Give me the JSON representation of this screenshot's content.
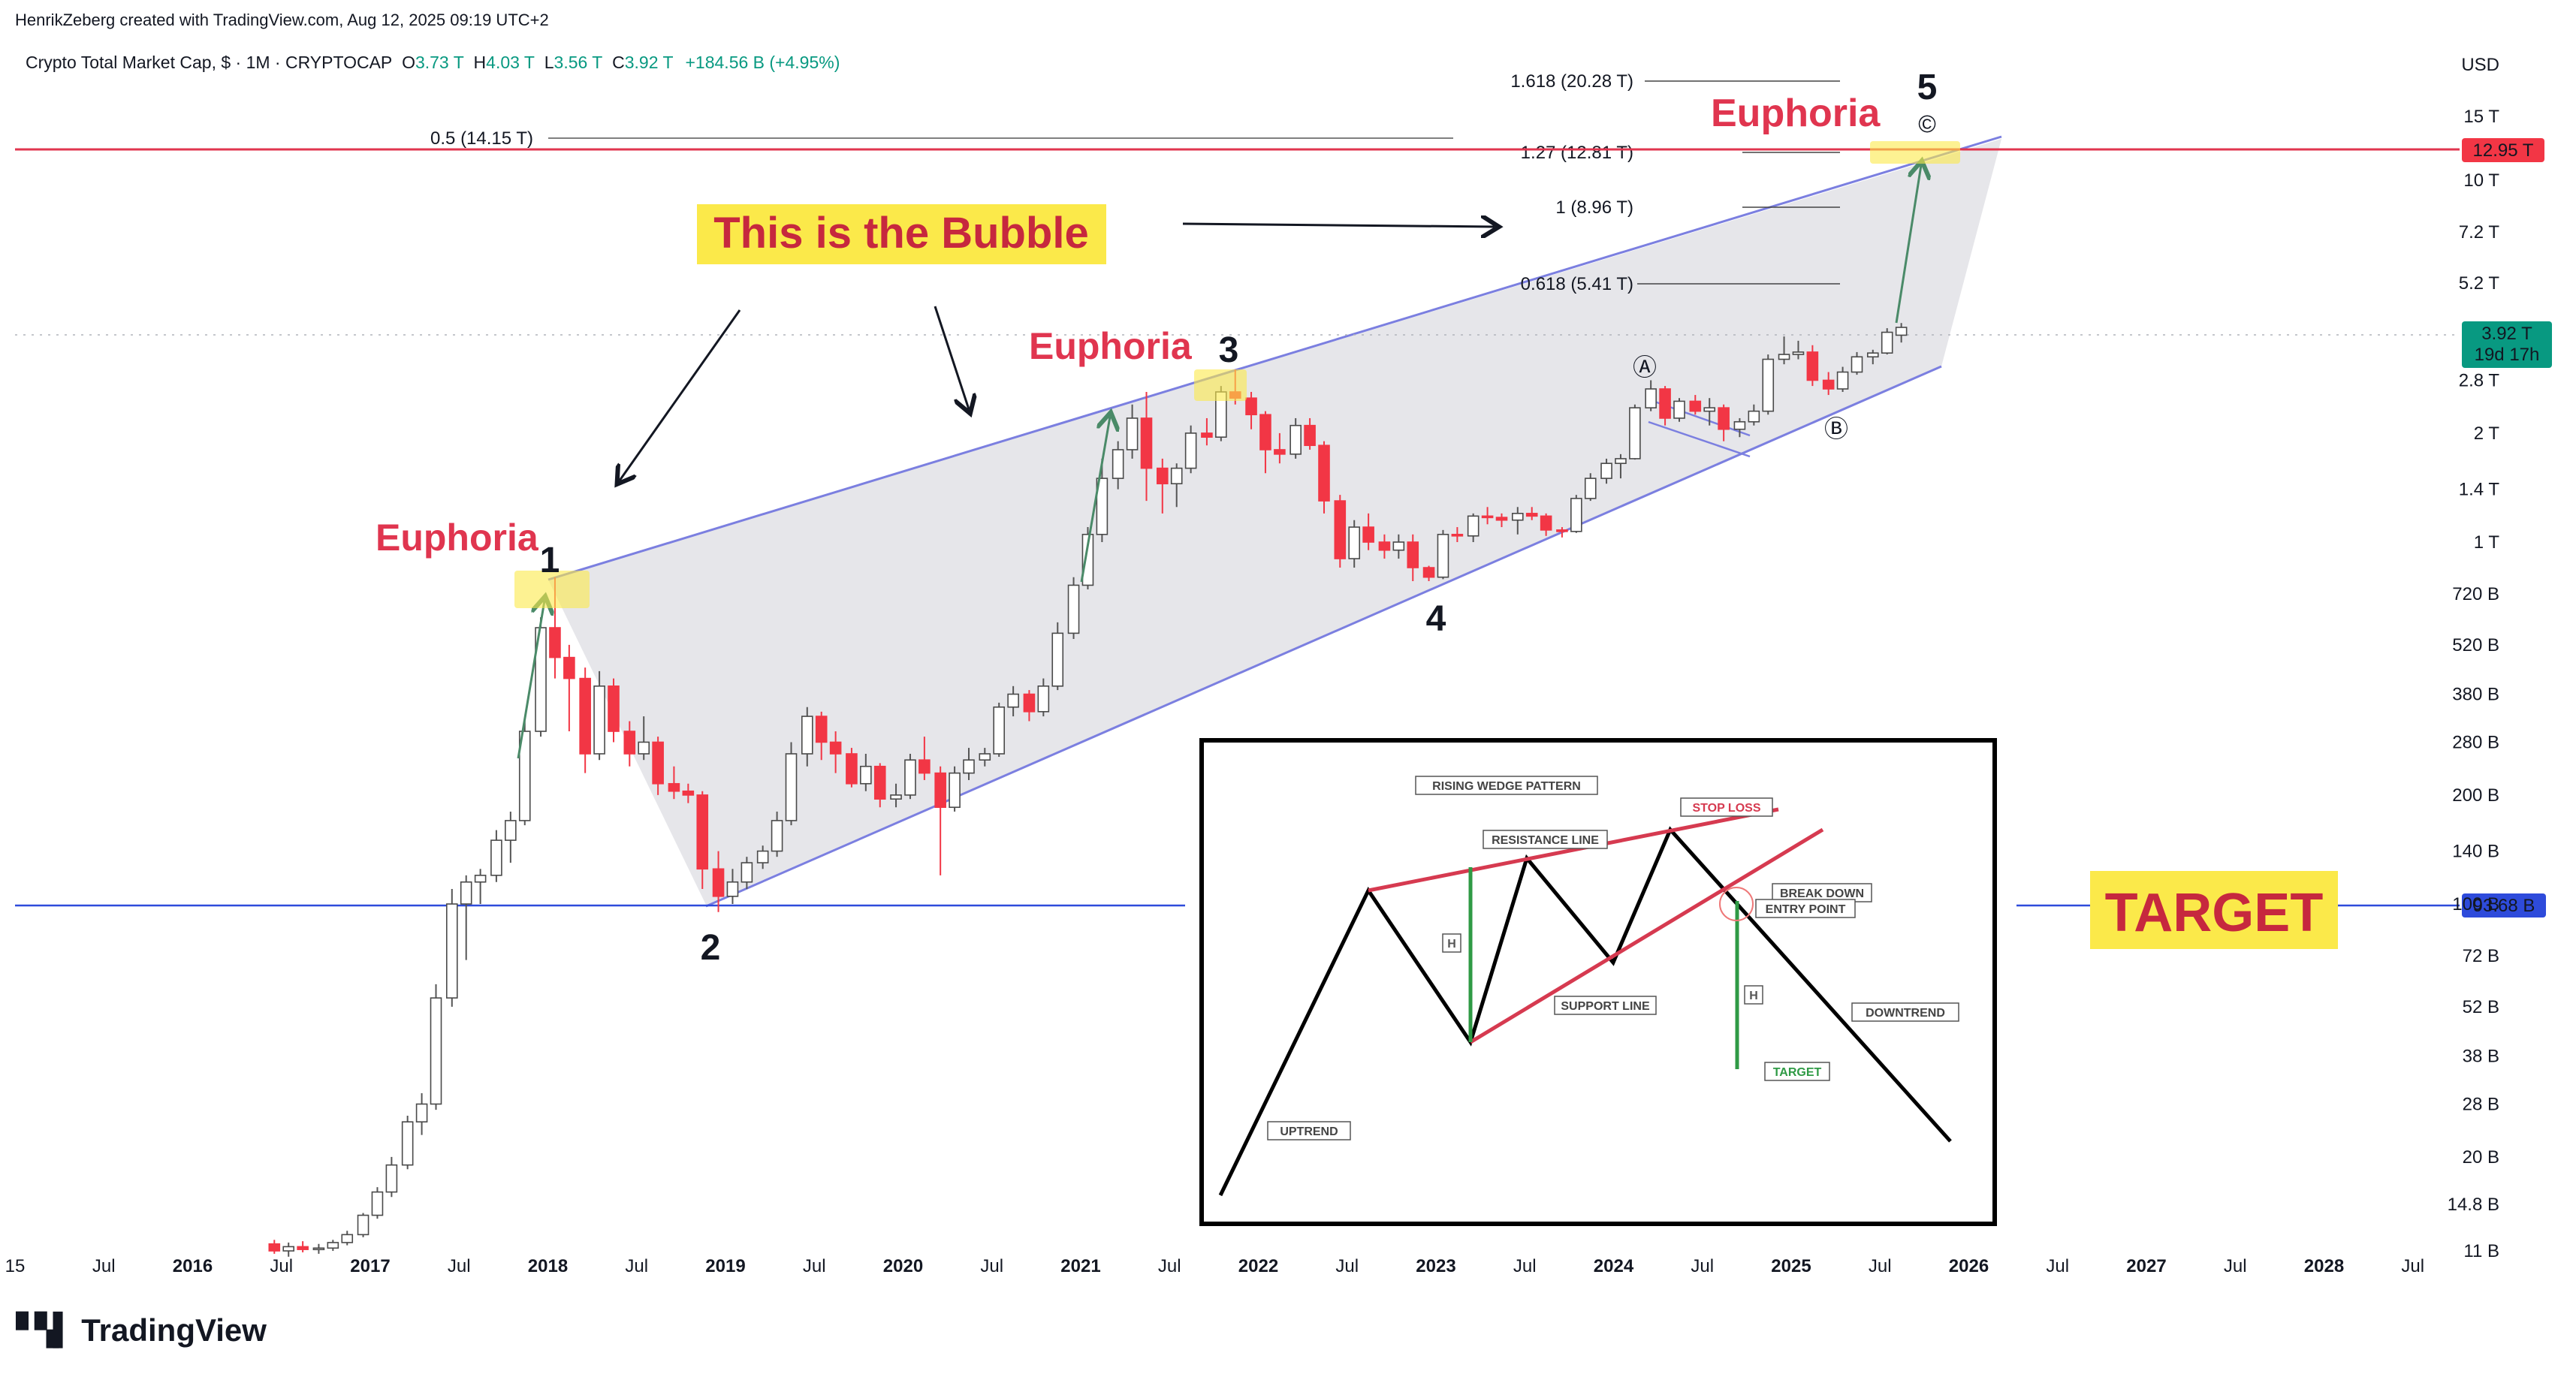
{
  "header": {
    "credit": "HenrikZeberg created with TradingView.com, Aug 12, 2025 09:19 UTC+2",
    "symbol": "Crypto Total Market Cap, $ · 1M · CRYPTOCAP",
    "ohlc": {
      "o_label": "O",
      "o": "3.73 T",
      "h_label": "H",
      "h": "4.03 T",
      "l_label": "L",
      "l": "3.56 T",
      "c_label": "C",
      "c": "3.92 T",
      "change": "+184.56 B (+4.95%)"
    }
  },
  "brand": {
    "logo_icon": "tradingview-logo-icon",
    "name": "TradingView"
  },
  "colors": {
    "up": "#089981",
    "down": "#f23645",
    "wedge_line": "#7b7fe0",
    "target_line": "#2e4bdb",
    "resistance_line": "#e8576b",
    "euphoria_text": "#e0354f",
    "highlight": "#fbe94a"
  },
  "annotations": {
    "euphoria_1": "Euphoria",
    "euphoria_3": "Euphoria",
    "euphoria_5": "Euphoria",
    "bubble": "This is the Bubble",
    "target": "TARGET",
    "wave_1": "1",
    "wave_2": "2",
    "wave_3": "3",
    "wave_4": "4",
    "wave_5": "5",
    "wave_a": "Ⓐ",
    "wave_b": "Ⓑ",
    "wave_c": "©"
  },
  "fib_levels": [
    {
      "label": "1.618 (20.28 T)"
    },
    {
      "label": "1.27 (12.81 T)"
    },
    {
      "label": "1 (8.96 T)"
    },
    {
      "label": "0.618 (5.41 T)"
    },
    {
      "label": "0.5 (14.15 T)"
    }
  ],
  "price_badges": {
    "top": "12.95 T",
    "current": "3.92 T",
    "countdown": "19d 17h",
    "target": "93.68 B"
  },
  "inset": {
    "title": "RISING WEDGE PATTERN",
    "resistance": "RESISTANCE LINE",
    "stop_loss": "STOP LOSS",
    "break_down": "BREAK DOWN",
    "entry_point": "ENTRY POINT",
    "support": "SUPPORT LINE",
    "downtrend": "DOWNTREND",
    "uptrend": "UPTREND",
    "target": "TARGET",
    "h_mark": "H"
  },
  "chart_data": {
    "type": "candlestick",
    "title": "Crypto Total Market Cap",
    "y_scale": "log",
    "y_unit": "USD",
    "y_ticks": [
      "15 T",
      "10 T",
      "7.2 T",
      "5.2 T",
      "2.8 T",
      "2 T",
      "1.4 T",
      "1 T",
      "720 B",
      "520 B",
      "380 B",
      "280 B",
      "200 B",
      "140 B",
      "100 B",
      "72 B",
      "52 B",
      "38 B",
      "28 B",
      "20 B",
      "14.8 B",
      "11 B"
    ],
    "y_tick_values": [
      15000,
      10000,
      7200,
      5200,
      2800,
      2000,
      1400,
      1000,
      720,
      520,
      380,
      280,
      200,
      140,
      100,
      72,
      52,
      38,
      28,
      20,
      14.8,
      11
    ],
    "x_ticks": [
      "15",
      "Jul",
      "2016",
      "Jul",
      "2017",
      "Jul",
      "2018",
      "Jul",
      "2019",
      "Jul",
      "2020",
      "Jul",
      "2021",
      "Jul",
      "2022",
      "Jul",
      "2023",
      "Jul",
      "2024",
      "Jul",
      "2025",
      "Jul",
      "2026",
      "Jul",
      "2027",
      "Jul",
      "2028",
      "Jul"
    ],
    "x_tick_values": [
      2015.0,
      2015.5,
      2016.0,
      2016.5,
      2017.0,
      2017.5,
      2018.0,
      2018.5,
      2019.0,
      2019.5,
      2020.0,
      2020.5,
      2021.0,
      2021.5,
      2022.0,
      2022.5,
      2023.0,
      2023.5,
      2024.0,
      2024.5,
      2025.0,
      2025.5,
      2026.0,
      2026.5,
      2027.0,
      2027.5,
      2028.0,
      2028.5
    ],
    "candles": [
      [
        2016.46,
        11.5,
        11.8,
        10.8,
        11.0
      ],
      [
        2016.54,
        11.0,
        11.6,
        10.6,
        11.3
      ],
      [
        2016.62,
        11.3,
        11.7,
        10.9,
        11.1
      ],
      [
        2016.71,
        11.1,
        11.5,
        10.8,
        11.2
      ],
      [
        2016.79,
        11.2,
        11.8,
        11.0,
        11.6
      ],
      [
        2016.87,
        11.6,
        12.5,
        11.4,
        12.2
      ],
      [
        2016.96,
        12.2,
        14.0,
        12.0,
        13.8
      ],
      [
        2017.04,
        13.8,
        16.5,
        13.5,
        16.0
      ],
      [
        2017.12,
        16.0,
        20.0,
        15.5,
        19.0
      ],
      [
        2017.21,
        19.0,
        26.0,
        18.5,
        25.0
      ],
      [
        2017.29,
        25.0,
        30.0,
        23.0,
        28.0
      ],
      [
        2017.37,
        28.0,
        60.0,
        27.0,
        55.0
      ],
      [
        2017.46,
        55.0,
        110.0,
        52.0,
        100.0
      ],
      [
        2017.54,
        100.0,
        120.0,
        70.0,
        115.0
      ],
      [
        2017.62,
        115.0,
        125.0,
        100.0,
        120.0
      ],
      [
        2017.71,
        120.0,
        160.0,
        115.0,
        150.0
      ],
      [
        2017.79,
        150.0,
        180.0,
        130.0,
        170.0
      ],
      [
        2017.87,
        170.0,
        320.0,
        165.0,
        300.0
      ],
      [
        2017.96,
        300.0,
        620.0,
        290.0,
        580.0
      ],
      [
        2018.04,
        580.0,
        800.0,
        420.0,
        480.0
      ],
      [
        2018.12,
        480.0,
        520.0,
        300.0,
        420.0
      ],
      [
        2018.21,
        420.0,
        450.0,
        230.0,
        260.0
      ],
      [
        2018.29,
        260.0,
        440.0,
        250.0,
        400.0
      ],
      [
        2018.37,
        400.0,
        420.0,
        280.0,
        300.0
      ],
      [
        2018.46,
        300.0,
        320.0,
        240.0,
        260.0
      ],
      [
        2018.54,
        260.0,
        330.0,
        250.0,
        280.0
      ],
      [
        2018.62,
        280.0,
        290.0,
        200.0,
        215.0
      ],
      [
        2018.71,
        215.0,
        240.0,
        195.0,
        205.0
      ],
      [
        2018.79,
        205.0,
        215.0,
        190.0,
        200.0
      ],
      [
        2018.87,
        200.0,
        205.0,
        110.0,
        125.0
      ],
      [
        2018.96,
        125.0,
        140.0,
        95.0,
        105.0
      ],
      [
        2019.04,
        105.0,
        125.0,
        100.0,
        115.0
      ],
      [
        2019.12,
        115.0,
        135.0,
        110.0,
        130.0
      ],
      [
        2019.21,
        130.0,
        145.0,
        125.0,
        140.0
      ],
      [
        2019.29,
        140.0,
        180.0,
        135.0,
        170.0
      ],
      [
        2019.37,
        170.0,
        280.0,
        165.0,
        260.0
      ],
      [
        2019.46,
        260.0,
        350.0,
        240.0,
        330.0
      ],
      [
        2019.54,
        330.0,
        340.0,
        250.0,
        280.0
      ],
      [
        2019.62,
        280.0,
        300.0,
        230.0,
        260.0
      ],
      [
        2019.71,
        260.0,
        270.0,
        210.0,
        215.0
      ],
      [
        2019.79,
        215.0,
        260.0,
        205.0,
        240.0
      ],
      [
        2019.87,
        240.0,
        245.0,
        185.0,
        195.0
      ],
      [
        2019.96,
        195.0,
        215.0,
        185.0,
        200.0
      ],
      [
        2020.04,
        200.0,
        260.0,
        195.0,
        250.0
      ],
      [
        2020.12,
        250.0,
        290.0,
        220.0,
        230.0
      ],
      [
        2020.21,
        230.0,
        240.0,
        120.0,
        185.0
      ],
      [
        2020.29,
        185.0,
        240.0,
        180.0,
        230.0
      ],
      [
        2020.37,
        230.0,
        270.0,
        220.0,
        250.0
      ],
      [
        2020.46,
        250.0,
        270.0,
        240.0,
        260.0
      ],
      [
        2020.54,
        260.0,
        360.0,
        255.0,
        350.0
      ],
      [
        2020.62,
        350.0,
        400.0,
        330.0,
        380.0
      ],
      [
        2020.71,
        380.0,
        390.0,
        320.0,
        340.0
      ],
      [
        2020.79,
        340.0,
        420.0,
        330.0,
        400.0
      ],
      [
        2020.87,
        400.0,
        600.0,
        390.0,
        560.0
      ],
      [
        2020.96,
        560.0,
        800.0,
        540.0,
        760.0
      ],
      [
        2021.04,
        760.0,
        1100.0,
        740.0,
        1050.0
      ],
      [
        2021.12,
        1050.0,
        1700.0,
        1000.0,
        1500.0
      ],
      [
        2021.21,
        1500.0,
        1900.0,
        1400.0,
        1800.0
      ],
      [
        2021.29,
        1800.0,
        2400.0,
        1700.0,
        2200.0
      ],
      [
        2021.37,
        2200.0,
        2600.0,
        1300.0,
        1600.0
      ],
      [
        2021.46,
        1600.0,
        1700.0,
        1200.0,
        1450.0
      ],
      [
        2021.54,
        1450.0,
        1650.0,
        1250.0,
        1600.0
      ],
      [
        2021.62,
        1600.0,
        2100.0,
        1550.0,
        2000.0
      ],
      [
        2021.71,
        2000.0,
        2200.0,
        1850.0,
        1950.0
      ],
      [
        2021.79,
        1950.0,
        2700.0,
        1900.0,
        2600.0
      ],
      [
        2021.87,
        2600.0,
        3000.0,
        2400.0,
        2500.0
      ],
      [
        2021.96,
        2500.0,
        2600.0,
        2050.0,
        2250.0
      ],
      [
        2022.04,
        2250.0,
        2300.0,
        1550.0,
        1800.0
      ],
      [
        2022.12,
        1800.0,
        2000.0,
        1650.0,
        1750.0
      ],
      [
        2022.21,
        1750.0,
        2200.0,
        1700.0,
        2100.0
      ],
      [
        2022.29,
        2100.0,
        2200.0,
        1800.0,
        1850.0
      ],
      [
        2022.37,
        1850.0,
        1900.0,
        1200.0,
        1300.0
      ],
      [
        2022.46,
        1300.0,
        1350.0,
        850.0,
        900.0
      ],
      [
        2022.54,
        900.0,
        1150.0,
        850.0,
        1100.0
      ],
      [
        2022.62,
        1100.0,
        1200.0,
        950.0,
        1000.0
      ],
      [
        2022.71,
        1000.0,
        1050.0,
        900.0,
        950.0
      ],
      [
        2022.79,
        950.0,
        1050.0,
        900.0,
        1000.0
      ],
      [
        2022.87,
        1000.0,
        1050.0,
        780.0,
        850.0
      ],
      [
        2022.96,
        850.0,
        860.0,
        780.0,
        800.0
      ],
      [
        2023.04,
        800.0,
        1080.0,
        790.0,
        1050.0
      ],
      [
        2023.12,
        1050.0,
        1100.0,
        1000.0,
        1040.0
      ],
      [
        2023.21,
        1040.0,
        1200.0,
        1000.0,
        1180.0
      ],
      [
        2023.29,
        1180.0,
        1250.0,
        1120.0,
        1170.0
      ],
      [
        2023.37,
        1170.0,
        1200.0,
        1100.0,
        1150.0
      ],
      [
        2023.46,
        1150.0,
        1250.0,
        1050.0,
        1200.0
      ],
      [
        2023.54,
        1200.0,
        1250.0,
        1150.0,
        1180.0
      ],
      [
        2023.62,
        1180.0,
        1200.0,
        1040.0,
        1080.0
      ],
      [
        2023.71,
        1080.0,
        1100.0,
        1030.0,
        1070.0
      ],
      [
        2023.79,
        1070.0,
        1350.0,
        1060.0,
        1320.0
      ],
      [
        2023.87,
        1320.0,
        1550.0,
        1300.0,
        1500.0
      ],
      [
        2023.96,
        1500.0,
        1700.0,
        1450.0,
        1650.0
      ],
      [
        2024.04,
        1650.0,
        1750.0,
        1500.0,
        1700.0
      ],
      [
        2024.12,
        1700.0,
        2400.0,
        1690.0,
        2350.0
      ],
      [
        2024.21,
        2350.0,
        2800.0,
        2300.0,
        2650.0
      ],
      [
        2024.29,
        2650.0,
        2700.0,
        2100.0,
        2200.0
      ],
      [
        2024.37,
        2200.0,
        2500.0,
        2150.0,
        2450.0
      ],
      [
        2024.46,
        2450.0,
        2550.0,
        2250.0,
        2300.0
      ],
      [
        2024.54,
        2300.0,
        2500.0,
        2100.0,
        2350.0
      ],
      [
        2024.62,
        2350.0,
        2400.0,
        1900.0,
        2050.0
      ],
      [
        2024.71,
        2050.0,
        2200.0,
        1950.0,
        2150.0
      ],
      [
        2024.79,
        2150.0,
        2400.0,
        2100.0,
        2300.0
      ],
      [
        2024.87,
        2300.0,
        3300.0,
        2250.0,
        3200.0
      ],
      [
        2024.96,
        3200.0,
        3700.0,
        3100.0,
        3300.0
      ],
      [
        2025.04,
        3300.0,
        3600.0,
        3200.0,
        3350.0
      ],
      [
        2025.12,
        3350.0,
        3500.0,
        2700.0,
        2800.0
      ],
      [
        2025.21,
        2800.0,
        2950.0,
        2550.0,
        2650.0
      ],
      [
        2025.29,
        2650.0,
        3050.0,
        2600.0,
        2950.0
      ],
      [
        2025.37,
        2950.0,
        3350.0,
        2900.0,
        3250.0
      ],
      [
        2025.46,
        3250.0,
        3400.0,
        3100.0,
        3330.0
      ],
      [
        2025.54,
        3330.0,
        3900.0,
        3300.0,
        3800.0
      ],
      [
        2025.62,
        3730.0,
        4030.0,
        3560.0,
        3920.0
      ]
    ]
  }
}
